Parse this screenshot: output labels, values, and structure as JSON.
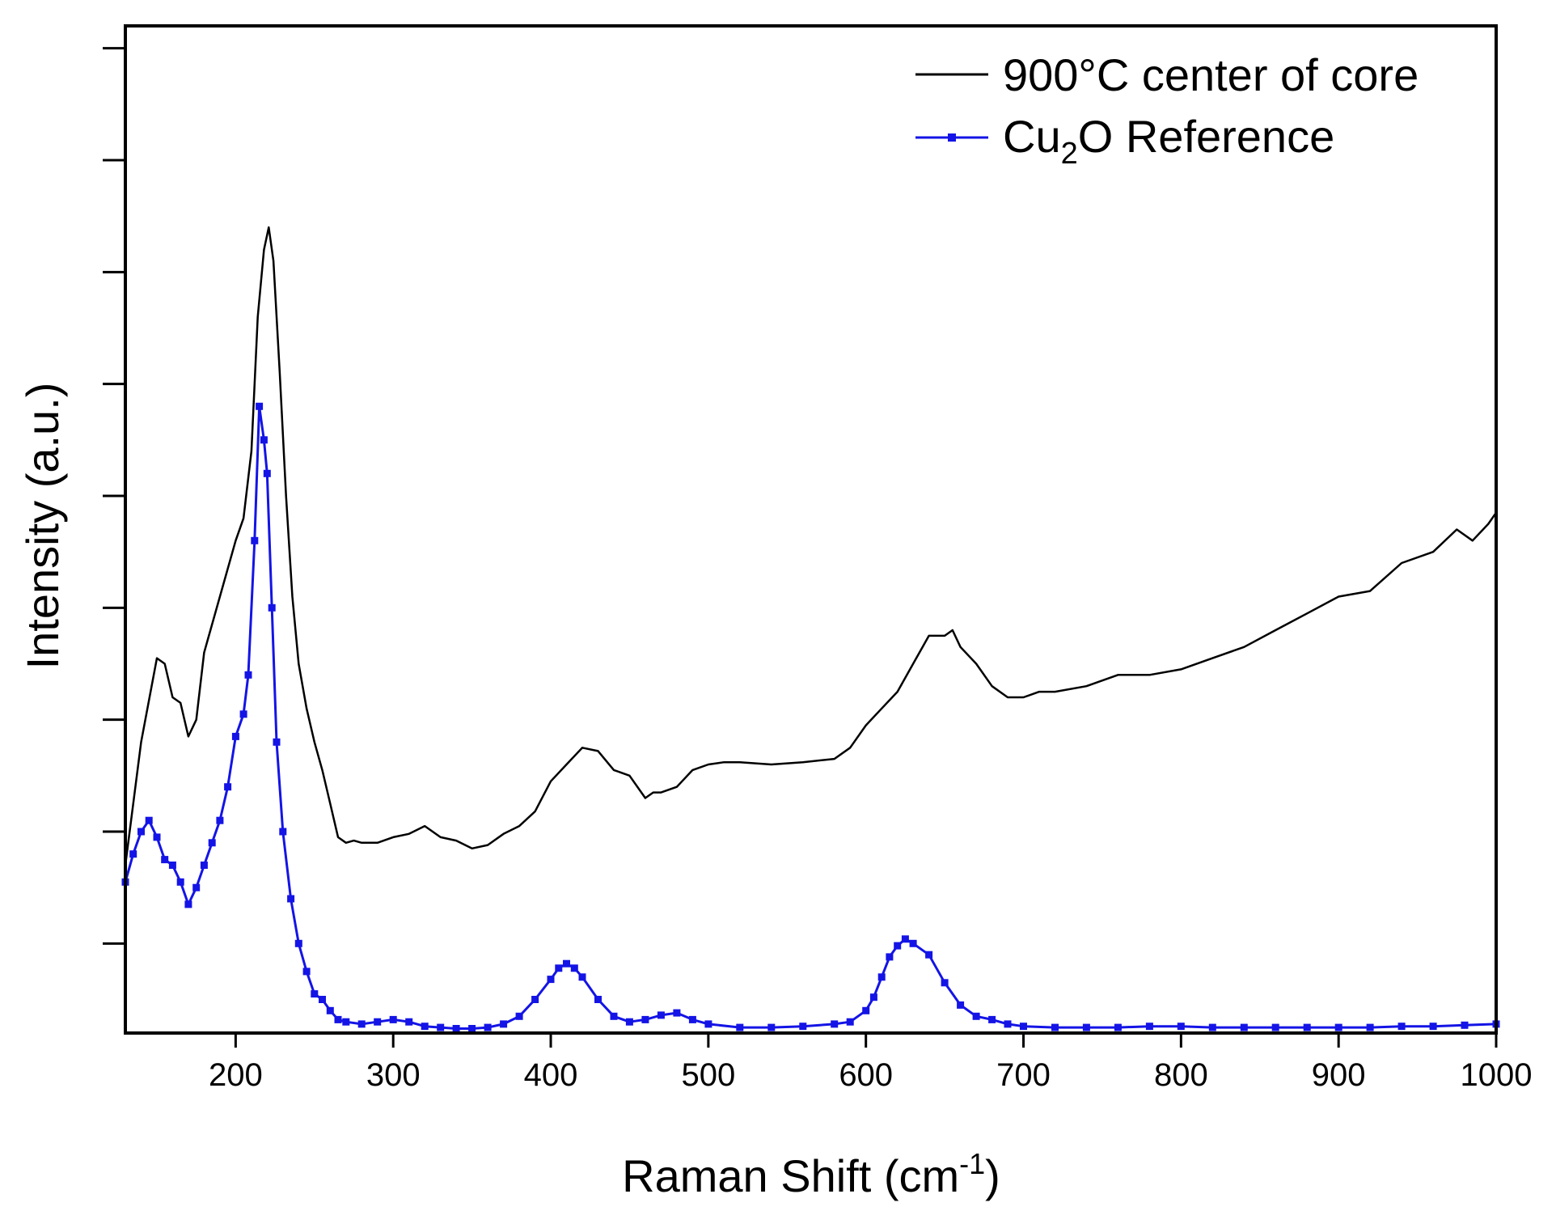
{
  "chart_data": {
    "type": "line",
    "title": "",
    "xlabel": "Raman Shift (cm",
    "xlabel_superscript": "-1",
    "xlabel_close": ")",
    "ylabel": "Intensity (a.u.)",
    "xlim": [
      130,
      1000
    ],
    "ylim": [
      0,
      9
    ],
    "x_ticks": [
      200,
      300,
      400,
      500,
      600,
      700,
      800,
      900,
      1000
    ],
    "y_ticks_unlabeled": [
      0.8,
      1.8,
      2.8,
      3.8,
      4.8,
      5.8,
      6.8,
      7.8,
      8.8
    ],
    "legend_position": "top-right",
    "series": [
      {
        "name": "900°C center of core",
        "legend_label": "900°C center of core",
        "color": "#000000",
        "marker": "none",
        "x": [
          130,
          140,
          150,
          155,
          160,
          165,
          170,
          175,
          180,
          190,
          200,
          205,
          210,
          214,
          218,
          221,
          224,
          228,
          232,
          236,
          240,
          245,
          250,
          255,
          260,
          265,
          270,
          275,
          280,
          290,
          300,
          310,
          320,
          330,
          340,
          350,
          360,
          370,
          380,
          390,
          400,
          410,
          420,
          430,
          440,
          450,
          460,
          465,
          470,
          480,
          490,
          500,
          510,
          520,
          540,
          560,
          580,
          590,
          600,
          610,
          620,
          630,
          640,
          650,
          655,
          660,
          670,
          680,
          690,
          700,
          710,
          720,
          740,
          760,
          780,
          800,
          820,
          840,
          860,
          880,
          900,
          920,
          940,
          960,
          975,
          985,
          995,
          1000
        ],
        "y": [
          1.5,
          2.6,
          3.35,
          3.3,
          3.0,
          2.95,
          2.65,
          2.8,
          3.4,
          3.9,
          4.4,
          4.6,
          5.2,
          6.4,
          7.0,
          7.2,
          6.9,
          5.9,
          4.8,
          3.9,
          3.3,
          2.9,
          2.6,
          2.35,
          2.05,
          1.75,
          1.7,
          1.72,
          1.7,
          1.7,
          1.75,
          1.78,
          1.85,
          1.75,
          1.72,
          1.65,
          1.68,
          1.78,
          1.85,
          1.98,
          2.25,
          2.4,
          2.55,
          2.52,
          2.35,
          2.3,
          2.1,
          2.15,
          2.15,
          2.2,
          2.35,
          2.4,
          2.42,
          2.42,
          2.4,
          2.42,
          2.45,
          2.55,
          2.75,
          2.9,
          3.05,
          3.3,
          3.55,
          3.55,
          3.6,
          3.45,
          3.3,
          3.1,
          3.0,
          3.0,
          3.05,
          3.05,
          3.1,
          3.2,
          3.2,
          3.25,
          3.35,
          3.45,
          3.6,
          3.75,
          3.9,
          3.95,
          4.2,
          4.3,
          4.5,
          4.4,
          4.55,
          4.65
        ]
      },
      {
        "name": "Cu2O Reference",
        "legend_label_base": "Cu",
        "legend_label_sub": "2",
        "legend_label_rest": "O Reference",
        "color": "#1414e6",
        "marker": "square",
        "x": [
          130,
          135,
          140,
          145,
          150,
          155,
          160,
          165,
          170,
          175,
          180,
          185,
          190,
          195,
          200,
          205,
          208,
          212,
          215,
          218,
          220,
          223,
          226,
          230,
          235,
          240,
          245,
          250,
          255,
          260,
          265,
          270,
          280,
          290,
          300,
          310,
          320,
          330,
          340,
          350,
          360,
          370,
          380,
          390,
          400,
          405,
          410,
          415,
          420,
          430,
          440,
          450,
          460,
          470,
          480,
          490,
          500,
          520,
          540,
          560,
          580,
          590,
          600,
          605,
          610,
          615,
          620,
          625,
          630,
          640,
          650,
          660,
          670,
          680,
          690,
          700,
          720,
          740,
          760,
          780,
          800,
          820,
          840,
          860,
          880,
          900,
          920,
          940,
          960,
          980,
          1000
        ],
        "y": [
          1.35,
          1.6,
          1.8,
          1.9,
          1.75,
          1.55,
          1.5,
          1.35,
          1.15,
          1.3,
          1.5,
          1.7,
          1.9,
          2.2,
          2.65,
          2.85,
          3.2,
          4.4,
          5.6,
          5.3,
          5.0,
          3.8,
          2.6,
          1.8,
          1.2,
          0.8,
          0.55,
          0.35,
          0.3,
          0.2,
          0.12,
          0.1,
          0.08,
          0.1,
          0.12,
          0.1,
          0.06,
          0.05,
          0.04,
          0.04,
          0.05,
          0.08,
          0.15,
          0.3,
          0.48,
          0.58,
          0.62,
          0.58,
          0.5,
          0.3,
          0.15,
          0.1,
          0.12,
          0.16,
          0.18,
          0.12,
          0.08,
          0.05,
          0.05,
          0.06,
          0.08,
          0.1,
          0.2,
          0.32,
          0.5,
          0.68,
          0.78,
          0.84,
          0.8,
          0.7,
          0.45,
          0.25,
          0.15,
          0.12,
          0.08,
          0.06,
          0.05,
          0.05,
          0.05,
          0.06,
          0.06,
          0.05,
          0.05,
          0.05,
          0.05,
          0.05,
          0.05,
          0.06,
          0.06,
          0.07,
          0.08
        ]
      }
    ]
  }
}
